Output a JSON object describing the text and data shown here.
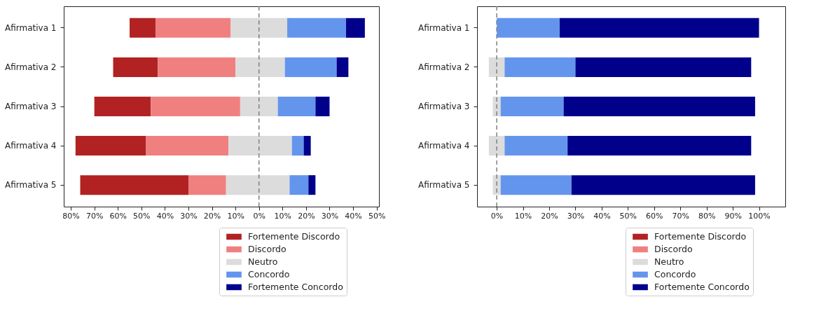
{
  "chart_data": [
    {
      "type": "bar",
      "orientation": "horizontal",
      "categories": [
        "Afirmativa 1",
        "Afirmativa 2",
        "Afirmativa 3",
        "Afirmativa 4",
        "Afirmativa 5"
      ],
      "series": [
        {
          "name": "Fortemente Discordo",
          "color": "#b22222",
          "base": [
            -55,
            -62,
            -70,
            -78,
            -76
          ],
          "values": [
            11,
            19,
            24,
            30,
            46
          ]
        },
        {
          "name": "Discordo",
          "color": "#f08080",
          "base": [
            -44,
            -43,
            -46,
            -48,
            -30
          ],
          "values": [
            32,
            33,
            38,
            35,
            16
          ]
        },
        {
          "name": "Neutro",
          "color": "#dcdcdc",
          "base": [
            -12,
            -10,
            -8,
            -13,
            -14
          ],
          "values": [
            24,
            21,
            16,
            27,
            27
          ]
        },
        {
          "name": "Concordo",
          "color": "#6495ed",
          "base": [
            12,
            11,
            8,
            14,
            13
          ],
          "values": [
            25,
            22,
            16,
            5,
            8
          ]
        },
        {
          "name": "Fortemente Concordo",
          "color": "#00008b",
          "base": [
            37,
            33,
            24,
            19,
            21
          ],
          "values": [
            8,
            5,
            6,
            3,
            3
          ]
        }
      ],
      "xlim": [
        -83,
        51
      ],
      "xticks": [
        {
          "value": -80,
          "label": "80%"
        },
        {
          "value": -70,
          "label": "70%"
        },
        {
          "value": -60,
          "label": "60%"
        },
        {
          "value": -50,
          "label": "50%"
        },
        {
          "value": -40,
          "label": "40%"
        },
        {
          "value": -30,
          "label": "30%"
        },
        {
          "value": -20,
          "label": "20%"
        },
        {
          "value": -10,
          "label": "10%"
        },
        {
          "value": 0,
          "label": "0%"
        },
        {
          "value": 10,
          "label": "10%"
        },
        {
          "value": 20,
          "label": "20%"
        },
        {
          "value": 30,
          "label": "30%"
        },
        {
          "value": 40,
          "label": "40%"
        },
        {
          "value": 50,
          "label": "50%"
        }
      ],
      "ref_lines": [
        {
          "axis": "x",
          "value": 0,
          "label": null,
          "color": "#808080",
          "line_style": "dashed"
        }
      ],
      "legend": "bottom right"
    },
    {
      "type": "bar",
      "orientation": "horizontal",
      "categories": [
        "Afirmativa 1",
        "Afirmativa 2",
        "Afirmativa 3",
        "Afirmativa 4",
        "Afirmativa 5"
      ],
      "series": [
        {
          "name": "Fortemente Discordo",
          "color": "#b22222",
          "base": [
            null,
            null,
            null,
            null,
            null
          ],
          "values": [
            null,
            null,
            null,
            null,
            null
          ]
        },
        {
          "name": "Discordo",
          "color": "#f08080",
          "base": [
            null,
            null,
            null,
            null,
            null
          ],
          "values": [
            null,
            null,
            null,
            null,
            null
          ]
        },
        {
          "name": "Neutro",
          "color": "#dcdcdc",
          "base": [
            null,
            -3,
            -1.5,
            -3,
            -1.5
          ],
          "values": [
            null,
            6,
            3,
            6,
            3
          ]
        },
        {
          "name": "Concordo",
          "color": "#6495ed",
          "base": [
            0,
            3,
            1.5,
            3,
            1.5
          ],
          "values": [
            24,
            27,
            24,
            24,
            27
          ]
        },
        {
          "name": "Fortemente Concordo",
          "color": "#00008b",
          "base": [
            24,
            30,
            25.5,
            27,
            28.5
          ],
          "values": [
            76,
            67,
            73,
            70,
            70
          ]
        }
      ],
      "xlim": [
        -7.5,
        110
      ],
      "xticks": [
        {
          "value": 0,
          "label": "0%"
        },
        {
          "value": 10,
          "label": "10%"
        },
        {
          "value": 20,
          "label": "20%"
        },
        {
          "value": 30,
          "label": "30%"
        },
        {
          "value": 40,
          "label": "40%"
        },
        {
          "value": 50,
          "label": "50%"
        },
        {
          "value": 60,
          "label": "60%"
        },
        {
          "value": 70,
          "label": "70%"
        },
        {
          "value": 80,
          "label": "80%"
        },
        {
          "value": 90,
          "label": "90%"
        },
        {
          "value": 100,
          "label": "100%"
        }
      ],
      "ref_lines": [
        {
          "axis": "x",
          "value": 0,
          "label": null,
          "color": "#808080",
          "line_style": "dashed"
        }
      ],
      "legend": "bottom right"
    }
  ]
}
